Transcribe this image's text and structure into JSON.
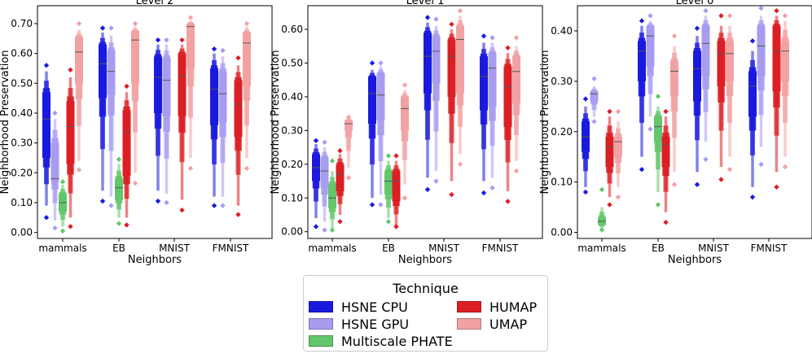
{
  "chart_data": [
    {
      "type": "boxen",
      "title": "Level 2",
      "xlabel": "Neighbors",
      "ylabel": "Neighborhood Preservation",
      "ylim": [
        -0.02,
        0.76
      ],
      "yticks": [
        "0.00",
        "0.10",
        "0.20",
        "0.30",
        "0.40",
        "0.50",
        "0.60",
        "0.70"
      ],
      "categories": [
        "mammals",
        "EB",
        "MNIST",
        "FMNIST"
      ],
      "series": [
        {
          "name": "HSNE CPU",
          "values": [
            {
              "q1": 0.25,
              "median": 0.38,
              "q3": 0.47,
              "min": 0.09,
              "max": 0.54,
              "out_low": 0.05,
              "out_high": 0.56
            },
            {
              "q1": 0.45,
              "median": 0.565,
              "q3": 0.63,
              "min": 0.14,
              "max": 0.67,
              "out_low": 0.105,
              "out_high": 0.685
            },
            {
              "q1": 0.4,
              "median": 0.52,
              "q3": 0.59,
              "min": 0.14,
              "max": 0.63,
              "out_low": 0.105,
              "out_high": 0.645
            },
            {
              "q1": 0.36,
              "median": 0.48,
              "q3": 0.55,
              "min": 0.12,
              "max": 0.6,
              "out_low": 0.09,
              "out_high": 0.615
            }
          ]
        },
        {
          "name": "HSNE GPU",
          "values": [
            {
              "q1": 0.17,
              "median": 0.18,
              "q3": 0.3,
              "min": 0.04,
              "max": 0.38,
              "out_low": 0.015,
              "out_high": 0.4
            },
            {
              "q1": 0.46,
              "median": 0.54,
              "q3": 0.61,
              "min": 0.12,
              "max": 0.66,
              "out_low": 0.09,
              "out_high": 0.685
            },
            {
              "q1": 0.39,
              "median": 0.51,
              "q3": 0.585,
              "min": 0.13,
              "max": 0.63,
              "out_low": 0.1,
              "out_high": 0.645
            },
            {
              "q1": 0.37,
              "median": 0.465,
              "q3": 0.54,
              "min": 0.12,
              "max": 0.59,
              "out_low": 0.09,
              "out_high": 0.61
            }
          ]
        },
        {
          "name": "Multiscale PHATE",
          "values": [
            {
              "q1": 0.07,
              "median": 0.1,
              "q3": 0.13,
              "min": 0.02,
              "max": 0.16,
              "out_low": 0.005,
              "out_high": 0.17
            },
            {
              "q1": 0.11,
              "median": 0.15,
              "q3": 0.18,
              "min": 0.05,
              "max": 0.23,
              "out_low": 0.03,
              "out_high": 0.245
            },
            null,
            null
          ]
        },
        {
          "name": "HUMAP",
          "values": [
            {
              "q1": 0.23,
              "median": 0.355,
              "q3": 0.44,
              "min": 0.05,
              "max": 0.52,
              "out_low": 0.02,
              "out_high": 0.545
            },
            {
              "q1": 0.19,
              "median": 0.335,
              "q3": 0.41,
              "min": 0.05,
              "max": 0.47,
              "out_low": 0.025,
              "out_high": 0.49
            },
            {
              "q1": 0.39,
              "median": 0.525,
              "q3": 0.6,
              "min": 0.11,
              "max": 0.63,
              "out_low": 0.075,
              "out_high": 0.645
            },
            {
              "q1": 0.32,
              "median": 0.43,
              "q3": 0.51,
              "min": 0.09,
              "max": 0.56,
              "out_low": 0.06,
              "out_high": 0.585
            }
          ]
        },
        {
          "name": "UMAP",
          "values": [
            {
              "q1": 0.5,
              "median": 0.605,
              "q3": 0.655,
              "min": 0.24,
              "max": 0.68,
              "out_low": 0.21,
              "out_high": 0.7
            },
            {
              "q1": 0.5,
              "median": 0.645,
              "q3": 0.675,
              "min": 0.2,
              "max": 0.69,
              "out_low": 0.165,
              "out_high": 0.7
            },
            {
              "q1": 0.55,
              "median": 0.69,
              "q3": 0.7,
              "min": 0.25,
              "max": 0.71,
              "out_low": 0.215,
              "out_high": 0.72
            },
            {
              "q1": 0.49,
              "median": 0.635,
              "q3": 0.67,
              "min": 0.25,
              "max": 0.69,
              "out_low": 0.215,
              "out_high": 0.7
            }
          ]
        }
      ]
    },
    {
      "type": "boxen",
      "title": "Level 1",
      "xlabel": "Neighbors",
      "ylabel": "Neighborhood Preservation",
      "ylim": [
        -0.02,
        0.67
      ],
      "yticks": [
        "0.00",
        "0.10",
        "0.20",
        "0.30",
        "0.40",
        "0.50",
        "0.60"
      ],
      "categories": [
        "mammals",
        "EB",
        "MNIST",
        "FMNIST"
      ],
      "series": [
        {
          "name": "HSNE CPU",
          "values": [
            {
              "q1": 0.15,
              "median": 0.19,
              "q3": 0.23,
              "min": 0.04,
              "max": 0.26,
              "out_low": 0.015,
              "out_high": 0.27
            },
            {
              "q1": 0.32,
              "median": 0.41,
              "q3": 0.46,
              "min": 0.1,
              "max": 0.48,
              "out_low": 0.08,
              "out_high": 0.5
            },
            {
              "q1": 0.41,
              "median": 0.52,
              "q3": 0.59,
              "min": 0.16,
              "max": 0.62,
              "out_low": 0.125,
              "out_high": 0.635
            },
            {
              "q1": 0.36,
              "median": 0.46,
              "q3": 0.52,
              "min": 0.15,
              "max": 0.56,
              "out_low": 0.115,
              "out_high": 0.58
            }
          ]
        },
        {
          "name": "HSNE GPU",
          "values": [
            {
              "q1": 0.13,
              "median": 0.18,
              "q3": 0.22,
              "min": 0.03,
              "max": 0.25,
              "out_low": 0.005,
              "out_high": 0.265
            },
            {
              "q1": 0.33,
              "median": 0.405,
              "q3": 0.47,
              "min": 0.11,
              "max": 0.49,
              "out_low": 0.08,
              "out_high": 0.5
            },
            {
              "q1": 0.44,
              "median": 0.535,
              "q3": 0.58,
              "min": 0.18,
              "max": 0.61,
              "out_low": 0.15,
              "out_high": 0.63
            },
            {
              "q1": 0.37,
              "median": 0.485,
              "q3": 0.53,
              "min": 0.16,
              "max": 0.56,
              "out_low": 0.13,
              "out_high": 0.575
            }
          ]
        },
        {
          "name": "Multiscale PHATE",
          "values": [
            {
              "q1": 0.07,
              "median": 0.1,
              "q3": 0.14,
              "min": 0.01,
              "max": 0.18,
              "out_low": 0.005,
              "out_high": 0.21
            },
            {
              "q1": 0.11,
              "median": 0.15,
              "q3": 0.18,
              "min": 0.04,
              "max": 0.21,
              "out_low": 0.03,
              "out_high": 0.225
            },
            null,
            null
          ]
        },
        {
          "name": "HUMAP",
          "values": [
            {
              "q1": 0.12,
              "median": 0.17,
              "q3": 0.2,
              "min": 0.05,
              "max": 0.23,
              "out_low": 0.03,
              "out_high": 0.24
            },
            {
              "q1": 0.09,
              "median": 0.15,
              "q3": 0.18,
              "min": 0.02,
              "max": 0.21,
              "out_low": 0.015,
              "out_high": 0.225
            },
            {
              "q1": 0.4,
              "median": 0.52,
              "q3": 0.57,
              "min": 0.15,
              "max": 0.6,
              "out_low": 0.11,
              "out_high": 0.615
            },
            {
              "q1": 0.31,
              "median": 0.43,
              "q3": 0.49,
              "min": 0.12,
              "max": 0.53,
              "out_low": 0.09,
              "out_high": 0.545
            }
          ]
        },
        {
          "name": "UMAP",
          "values": [
            {
              "q1": 0.3,
              "median": 0.32,
              "q3": 0.33,
              "min": 0.19,
              "max": 0.34,
              "out_low": 0.16,
              "out_high": 0.34
            },
            {
              "q1": 0.3,
              "median": 0.365,
              "q3": 0.4,
              "min": 0.14,
              "max": 0.42,
              "out_low": 0.1,
              "out_high": 0.435
            },
            {
              "q1": 0.41,
              "median": 0.57,
              "q3": 0.61,
              "min": 0.23,
              "max": 0.64,
              "out_low": 0.2,
              "out_high": 0.655
            },
            {
              "q1": 0.38,
              "median": 0.475,
              "q3": 0.52,
              "min": 0.21,
              "max": 0.55,
              "out_low": 0.18,
              "out_high": 0.575
            }
          ]
        }
      ]
    },
    {
      "type": "boxen",
      "title": "Level 0",
      "xlabel": "Neighbors",
      "ylabel": "Neighborhood Preservation",
      "ylim": [
        -0.012,
        0.45
      ],
      "yticks": [
        "0.00",
        "0.10",
        "0.20",
        "0.30",
        "0.40"
      ],
      "categories": [
        "mammals",
        "EB",
        "MNIST",
        "FMNIST"
      ],
      "series": [
        {
          "name": "HSNE CPU",
          "values": [
            {
              "q1": 0.16,
              "median": 0.19,
              "q3": 0.22,
              "min": 0.09,
              "max": 0.25,
              "out_low": 0.08,
              "out_high": 0.265
            },
            {
              "q1": 0.3,
              "median": 0.36,
              "q3": 0.38,
              "min": 0.15,
              "max": 0.41,
              "out_low": 0.125,
              "out_high": 0.42
            },
            {
              "q1": 0.26,
              "median": 0.325,
              "q3": 0.36,
              "min": 0.12,
              "max": 0.39,
              "out_low": 0.095,
              "out_high": 0.405
            },
            {
              "q1": 0.23,
              "median": 0.29,
              "q3": 0.32,
              "min": 0.09,
              "max": 0.36,
              "out_low": 0.07,
              "out_high": 0.38
            }
          ]
        },
        {
          "name": "HSNE GPU",
          "values": [
            {
              "q1": 0.26,
              "median": 0.275,
              "q3": 0.28,
              "min": 0.23,
              "max": 0.29,
              "out_low": 0.22,
              "out_high": 0.305
            },
            {
              "q1": 0.33,
              "median": 0.39,
              "q3": 0.41,
              "min": 0.23,
              "max": 0.42,
              "out_low": 0.205,
              "out_high": 0.43
            },
            {
              "q1": 0.31,
              "median": 0.375,
              "q3": 0.41,
              "min": 0.18,
              "max": 0.43,
              "out_low": 0.145,
              "out_high": 0.44
            },
            {
              "q1": 0.31,
              "median": 0.37,
              "q3": 0.41,
              "min": 0.17,
              "max": 0.43,
              "out_low": 0.135,
              "out_high": 0.445
            }
          ]
        },
        {
          "name": "Multiscale PHATE",
          "values": [
            {
              "q1": 0.015,
              "median": 0.022,
              "q3": 0.03,
              "min": 0.008,
              "max": 0.05,
              "out_low": 0.005,
              "out_high": 0.085
            },
            {
              "q1": 0.18,
              "median": 0.21,
              "q3": 0.23,
              "min": 0.08,
              "max": 0.25,
              "out_low": 0.055,
              "out_high": 0.27
            },
            null,
            null
          ]
        },
        {
          "name": "HUMAP",
          "values": [
            {
              "q1": 0.13,
              "median": 0.17,
              "q3": 0.19,
              "min": 0.07,
              "max": 0.23,
              "out_low": 0.055,
              "out_high": 0.24
            },
            {
              "q1": 0.13,
              "median": 0.175,
              "q3": 0.19,
              "min": 0.04,
              "max": 0.23,
              "out_low": 0.02,
              "out_high": 0.24
            },
            {
              "q1": 0.29,
              "median": 0.355,
              "q3": 0.38,
              "min": 0.13,
              "max": 0.41,
              "out_low": 0.105,
              "out_high": 0.43
            },
            {
              "q1": 0.28,
              "median": 0.36,
              "q3": 0.41,
              "min": 0.12,
              "max": 0.43,
              "out_low": 0.09,
              "out_high": 0.44
            }
          ]
        },
        {
          "name": "UMAP",
          "values": [
            {
              "q1": 0.15,
              "median": 0.18,
              "q3": 0.19,
              "min": 0.09,
              "max": 0.22,
              "out_low": 0.07,
              "out_high": 0.24
            },
            {
              "q1": 0.27,
              "median": 0.32,
              "q3": 0.34,
              "min": 0.12,
              "max": 0.37,
              "out_low": 0.095,
              "out_high": 0.39
            },
            {
              "q1": 0.3,
              "median": 0.355,
              "q3": 0.38,
              "min": 0.15,
              "max": 0.41,
              "out_low": 0.125,
              "out_high": 0.43
            },
            {
              "q1": 0.3,
              "median": 0.36,
              "q3": 0.38,
              "min": 0.15,
              "max": 0.42,
              "out_low": 0.13,
              "out_high": 0.43
            }
          ]
        }
      ]
    }
  ],
  "colors": {
    "HSNE CPU": "#1a1adf",
    "HSNE GPU": "#a89cf0",
    "Multiscale PHATE": "#62c66a",
    "HUMAP": "#dc1f24",
    "UMAP": "#f2a2a3"
  },
  "legend": {
    "title": "Technique",
    "items": [
      "HSNE CPU",
      "HSNE GPU",
      "Multiscale PHATE",
      "HUMAP",
      "UMAP"
    ]
  }
}
